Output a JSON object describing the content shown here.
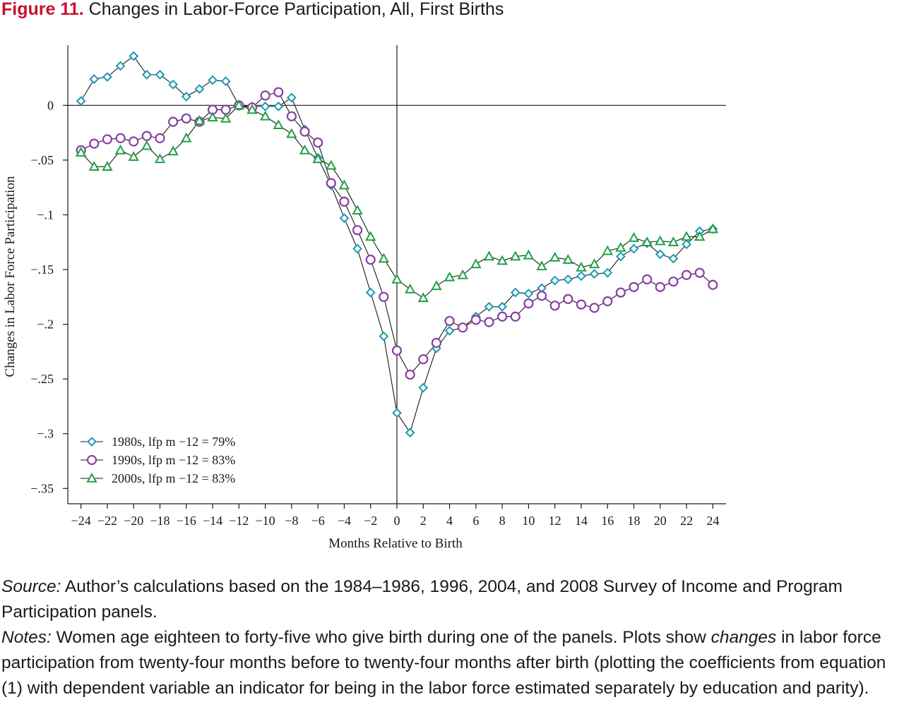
{
  "figure": {
    "label": "Figure 11.",
    "title": "Changes in Labor-Force Participation, All, First Births"
  },
  "chart_data": {
    "type": "line",
    "xlabel": "Months Relative to Birth",
    "ylabel": "Changes in Labor Force Participation",
    "xlim": [
      -25,
      25
    ],
    "ylim": [
      -0.364,
      0.055
    ],
    "x_ticks": [
      -24,
      -22,
      -20,
      -18,
      -16,
      -14,
      -12,
      -10,
      -8,
      -6,
      -4,
      -2,
      0,
      2,
      4,
      6,
      8,
      10,
      12,
      14,
      16,
      18,
      20,
      22,
      24
    ],
    "x_tick_labels": [
      "−24",
      "−22",
      "−20",
      "−18",
      "−16",
      "−14",
      "−12",
      "−10",
      "−8",
      "−6",
      "−4",
      "−2",
      "0",
      "2",
      "4",
      "6",
      "8",
      "10",
      "12",
      "14",
      "16",
      "18",
      "20",
      "22",
      "24"
    ],
    "y_ticks": [
      0,
      -0.05,
      -0.1,
      -0.15,
      -0.2,
      -0.25,
      -0.3,
      -0.35
    ],
    "y_tick_labels": [
      "0",
      "−.05",
      "−.1",
      "−.15",
      "−.2",
      "−.25",
      "−.3",
      "−.35"
    ],
    "reference_lines": {
      "x": 0,
      "y": 0
    },
    "grid": false,
    "legend_position": "bottom-left",
    "x": [
      -24,
      -23,
      -22,
      -21,
      -20,
      -19,
      -18,
      -17,
      -16,
      -15,
      -14,
      -13,
      -12,
      -11,
      -10,
      -9,
      -8,
      -7,
      -6,
      -5,
      -4,
      -3,
      -2,
      -1,
      0,
      1,
      2,
      3,
      4,
      5,
      6,
      7,
      8,
      9,
      10,
      11,
      12,
      13,
      14,
      15,
      16,
      17,
      18,
      19,
      20,
      21,
      22,
      23,
      24
    ],
    "series": [
      {
        "name": "1980s, lfp m −12 = 79%",
        "marker": "diamond",
        "color": "#1a9bb0",
        "values": [
          0.004,
          0.024,
          0.026,
          0.036,
          0.045,
          0.028,
          0.028,
          0.019,
          0.008,
          0.015,
          0.023,
          0.022,
          0.0,
          -0.001,
          -0.001,
          -0.001,
          0.007,
          -0.022,
          -0.048,
          -0.073,
          -0.103,
          -0.131,
          -0.171,
          -0.211,
          -0.281,
          -0.299,
          -0.258,
          -0.222,
          -0.206,
          -0.203,
          -0.193,
          -0.184,
          -0.184,
          -0.171,
          -0.172,
          -0.167,
          -0.16,
          -0.159,
          -0.156,
          -0.154,
          -0.153,
          -0.138,
          -0.131,
          -0.126,
          -0.136,
          -0.14,
          -0.127,
          -0.115,
          -0.113
        ]
      },
      {
        "name": "1990s, lfp m −12 = 83%",
        "marker": "circle",
        "color": "#8a3fa6",
        "values": [
          -0.041,
          -0.035,
          -0.031,
          -0.03,
          -0.033,
          -0.028,
          -0.03,
          -0.015,
          -0.012,
          -0.015,
          -0.004,
          -0.004,
          0.0,
          -0.002,
          0.009,
          0.012,
          -0.01,
          -0.024,
          -0.034,
          -0.071,
          -0.088,
          -0.114,
          -0.141,
          -0.175,
          -0.224,
          -0.246,
          -0.232,
          -0.217,
          -0.197,
          -0.203,
          -0.196,
          -0.198,
          -0.193,
          -0.193,
          -0.181,
          -0.174,
          -0.183,
          -0.177,
          -0.182,
          -0.185,
          -0.179,
          -0.171,
          -0.166,
          -0.159,
          -0.166,
          -0.161,
          -0.155,
          -0.153,
          -0.164
        ]
      },
      {
        "name": "2000s, lfp m −12 = 83%",
        "marker": "triangle",
        "color": "#1fa045",
        "values": [
          -0.043,
          -0.056,
          -0.056,
          -0.041,
          -0.047,
          -0.037,
          -0.049,
          -0.042,
          -0.03,
          -0.014,
          -0.011,
          -0.012,
          0.0,
          -0.004,
          -0.01,
          -0.018,
          -0.026,
          -0.041,
          -0.049,
          -0.055,
          -0.073,
          -0.096,
          -0.12,
          -0.14,
          -0.159,
          -0.168,
          -0.176,
          -0.165,
          -0.157,
          -0.155,
          -0.145,
          -0.138,
          -0.142,
          -0.138,
          -0.137,
          -0.147,
          -0.139,
          -0.141,
          -0.148,
          -0.145,
          -0.133,
          -0.13,
          -0.121,
          -0.125,
          -0.124,
          -0.125,
          -0.12,
          -0.12,
          -0.113
        ]
      }
    ]
  },
  "notes": {
    "source_label": "Source:",
    "source_text": " Author’s calculations based on the 1984–1986, 1996, 2004, and 2008 Survey of Income and Program Participation panels.",
    "notes_label": "Notes:",
    "notes_text_a": " Women age eighteen to forty-five who give birth during one of the panels. Plots show ",
    "notes_emph": "changes",
    "notes_text_b": " in labor force participation from twenty-four months before to twenty-four months after birth (plotting the coefficients from equation (1) with dependent variable an indicator for being in the labor force estimated separately by education and parity)."
  }
}
